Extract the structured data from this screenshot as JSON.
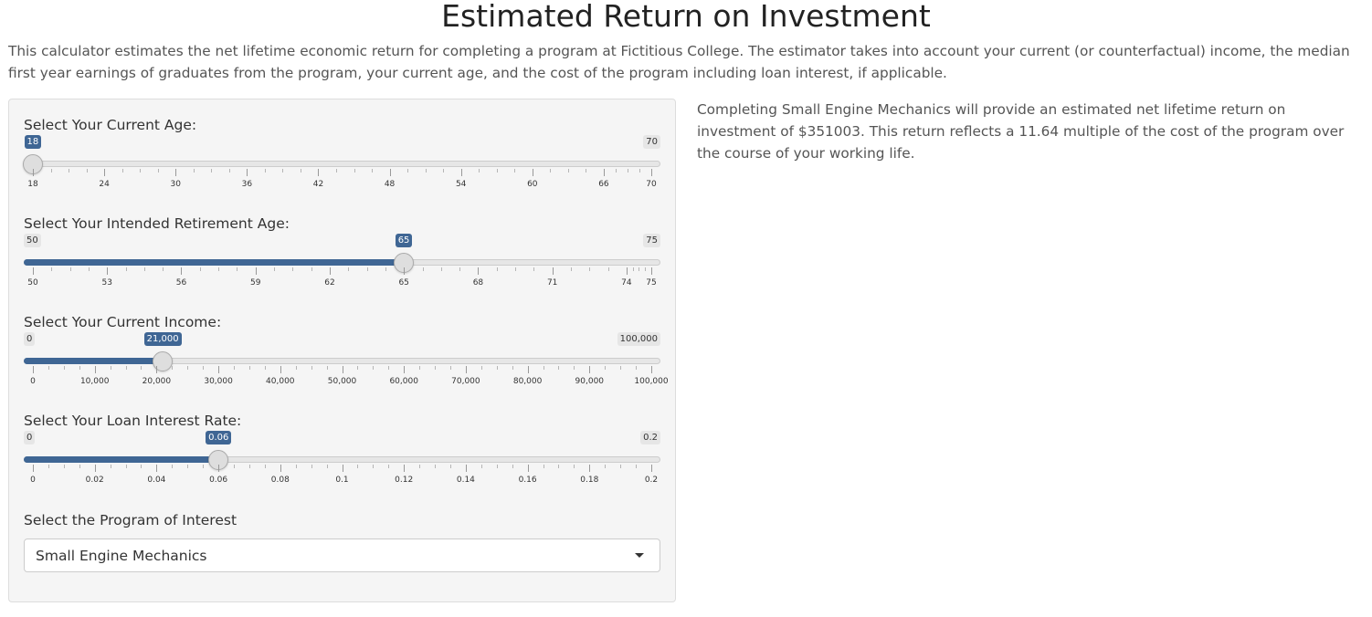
{
  "page": {
    "title": "Estimated Return on Investment",
    "intro": "This calculator estimates the net lifetime economic return for completing a program at Fictitious College. The estimator takes into account your current (or counterfactual) income, the median first year earnings of graduates from the program, your current age, and the cost of the program including loan interest, if applicable."
  },
  "sliders": [
    {
      "label": "Select Your Current Age:",
      "min": 18,
      "max": 70,
      "value": 18,
      "min_label": "18",
      "max_label": "70",
      "value_label": "18",
      "ticks": [
        "18",
        "24",
        "30",
        "36",
        "42",
        "48",
        "54",
        "60",
        "66",
        "70"
      ],
      "filled": false
    },
    {
      "label": "Select Your Intended Retirement Age:",
      "min": 50,
      "max": 75,
      "value": 65,
      "min_label": "50",
      "max_label": "75",
      "value_label": "65",
      "ticks": [
        "50",
        "53",
        "56",
        "59",
        "62",
        "65",
        "68",
        "71",
        "74",
        "75"
      ],
      "filled": true
    },
    {
      "label": "Select Your Current Income:",
      "min": 0,
      "max": 100000,
      "value": 21000,
      "min_label": "0",
      "max_label": "100,000",
      "value_label": "21,000",
      "ticks": [
        "0",
        "10,000",
        "20,000",
        "30,000",
        "40,000",
        "50,000",
        "60,000",
        "70,000",
        "80,000",
        "90,000",
        "100,000"
      ],
      "filled": true
    },
    {
      "label": "Select Your Loan Interest Rate:",
      "min": 0,
      "max": 0.2,
      "value": 0.06,
      "min_label": "0",
      "max_label": "0.2",
      "value_label": "0.06",
      "ticks": [
        "0",
        "0.02",
        "0.04",
        "0.06",
        "0.08",
        "0.1",
        "0.12",
        "0.14",
        "0.16",
        "0.18",
        "0.2"
      ],
      "filled": true
    }
  ],
  "program_select": {
    "label": "Select the Program of Interest",
    "value": "Small Engine Mechanics"
  },
  "result": {
    "text": "Completing Small Engine Mechanics will provide an estimated net lifetime return on investment of $351003. This return reflects a 11.64 multiple of the cost of the program over the course of your working life."
  },
  "colors": {
    "accent": "#3f6694",
    "track": "#e6e6e6",
    "panel_bg": "#f5f5f5"
  }
}
